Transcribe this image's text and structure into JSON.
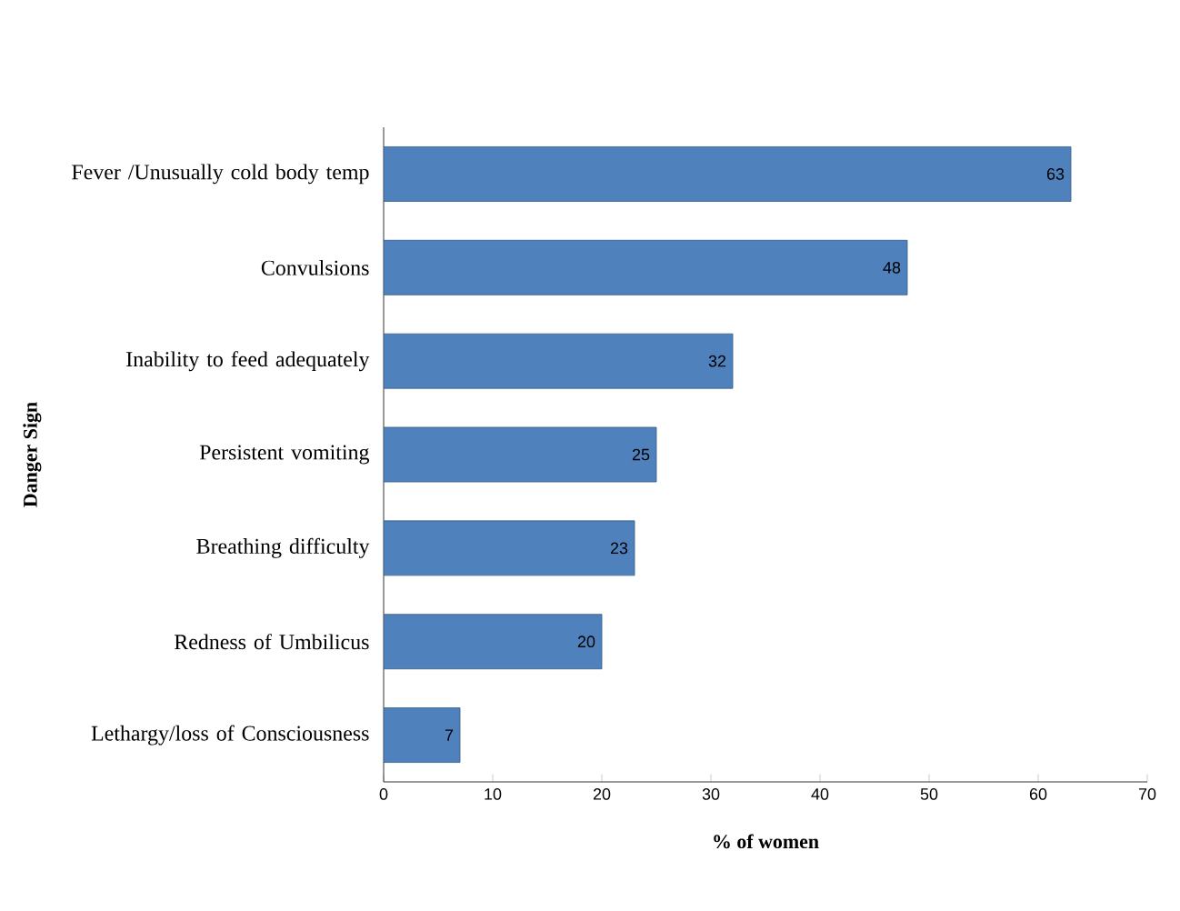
{
  "chart_data": {
    "type": "bar",
    "orientation": "horizontal",
    "xlabel": "% of women",
    "ylabel": "Danger Sign",
    "categories": [
      "Fever /Unusually cold body temp",
      "Convulsions",
      "Inability to feed adequately",
      "Persistent vomiting",
      "Breathing difficulty",
      "Redness of Umbilicus",
      "Lethargy/loss of Consciousness"
    ],
    "values": [
      63,
      48,
      32,
      25,
      23,
      20,
      7
    ],
    "color": "#4f81bd",
    "xlim": [
      0,
      70
    ],
    "xticks": [
      0,
      10,
      20,
      30,
      40,
      50,
      60,
      70
    ],
    "data_labels": true,
    "grid": false
  }
}
